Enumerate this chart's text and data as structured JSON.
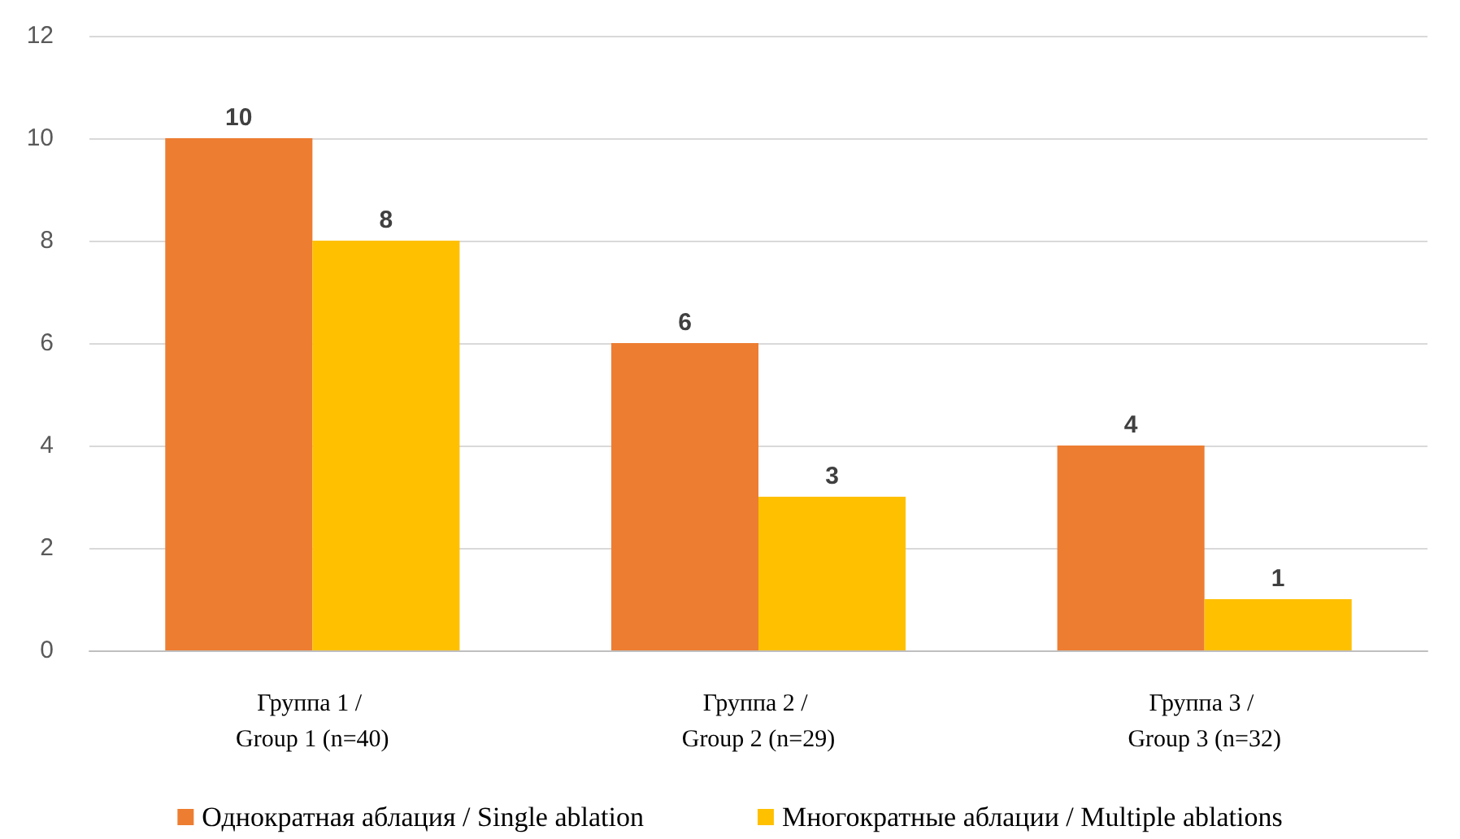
{
  "chart_data": {
    "type": "bar",
    "categories": [
      "Группа 1 / Group 1 (n=40)",
      "Группа 2 / Group 2 (n=29)",
      "Группа 3 / Group 3 (n=32)"
    ],
    "series": [
      {
        "name": "Однократная аблация / Single ablation",
        "color": "#ed7d31",
        "values": [
          10,
          6,
          4
        ]
      },
      {
        "name": "Многократные аблации / Multiple ablations",
        "color": "#ffc000",
        "values": [
          8,
          3,
          1
        ]
      }
    ],
    "ylim": [
      0,
      12
    ],
    "yticks": [
      0,
      2,
      4,
      6,
      8,
      10,
      12
    ],
    "grid": "y",
    "legend": "bottom",
    "data_labels": true
  }
}
